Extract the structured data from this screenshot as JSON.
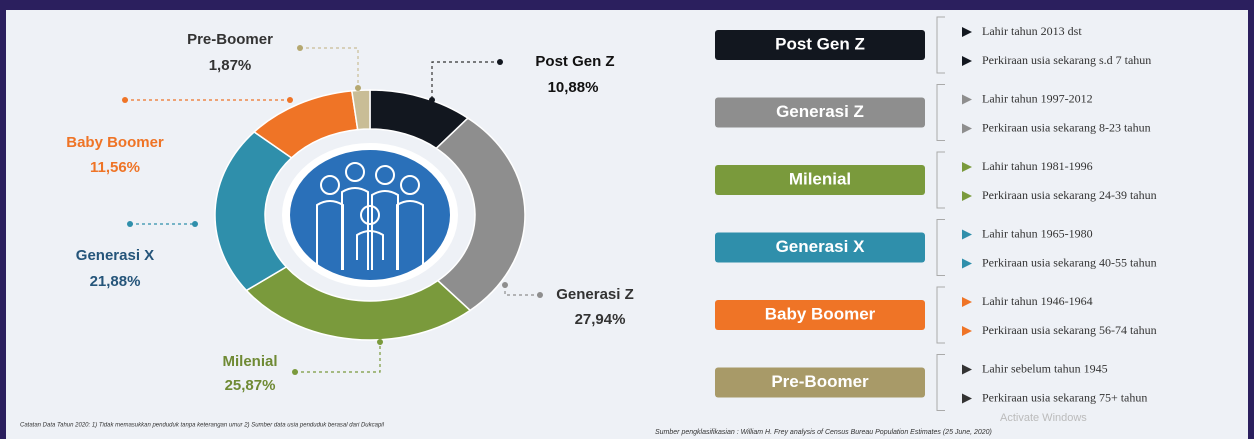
{
  "chart_data": {
    "type": "donut",
    "categories": [
      "Post Gen Z",
      "Generasi Z",
      "Milenial",
      "Generasi X",
      "Baby Boomer",
      "Pre-Boomer"
    ],
    "values": [
      10.88,
      27.94,
      25.87,
      21.88,
      11.56,
      1.87
    ],
    "value_labels": [
      "10,88%",
      "27,94%",
      "25,87%",
      "21,88%",
      "11,56%",
      "1,87%"
    ],
    "colors": [
      "#12171f",
      "#8e8e8e",
      "#7a9a3c",
      "#2f8fab",
      "#ef7426",
      "#c9bd96"
    ]
  },
  "legend_panel": [
    {
      "born": "Lahir tahun 2013 dst",
      "age": "Perkiraan usia sekarang s.d 7 tahun"
    },
    {
      "born": "Lahir tahun 1997-2012",
      "age": "Perkiraan usia sekarang 8-23 tahun"
    },
    {
      "born": "Lahir tahun 1981-1996",
      "age": "Perkiraan usia sekarang 24-39 tahun"
    },
    {
      "born": "Lahir tahun 1965-1980",
      "age": "Perkiraan usia sekarang 40-55 tahun"
    },
    {
      "born": "Lahir tahun 1946-1964",
      "age": "Perkiraan usia sekarang 56-74 tahun"
    },
    {
      "born": "Lahir sebelum tahun 1945",
      "age": "Perkiraan usia sekarang 75+ tahun"
    }
  ],
  "footnote": "Catatan Data Tahun 2020: 1) Tidak memasukkan penduduk tanpa keterangan umur 2) Sumber data usia penduduk berasal dari Dukcapil",
  "source": "Sumber pengklasifikasian : William H. Frey analysis of Census Bureau Population Estimates (25 June, 2020)",
  "watermark": "Activate Windows"
}
